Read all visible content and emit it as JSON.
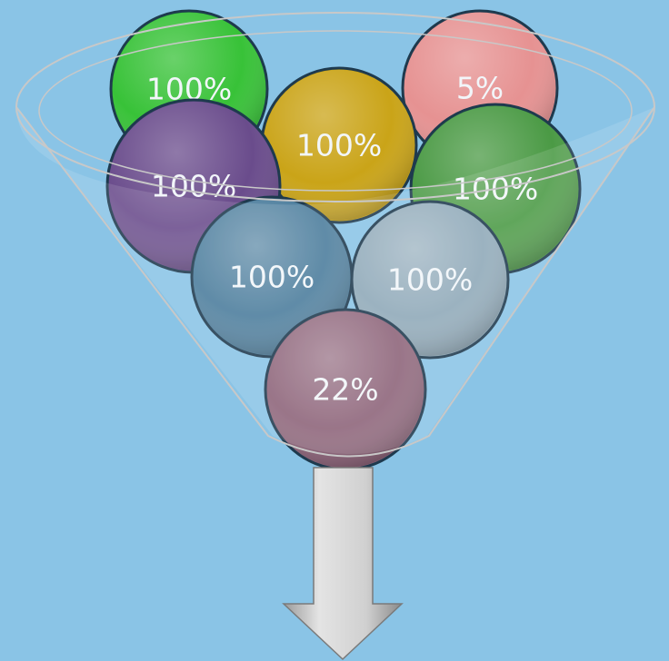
{
  "balls": [
    {
      "label": "100%",
      "color": "#38c238"
    },
    {
      "label": "5%",
      "color": "#e69292"
    },
    {
      "label": "100%",
      "color": "#caa418"
    },
    {
      "label": "100%",
      "color": "#6a4c8c"
    },
    {
      "label": "100%",
      "color": "#4b9a45"
    },
    {
      "label": "100%",
      "color": "#4a7c9c"
    },
    {
      "label": "100%",
      "color": "#8ea8b8"
    },
    {
      "label": "22%",
      "color": "#8c6278"
    }
  ]
}
